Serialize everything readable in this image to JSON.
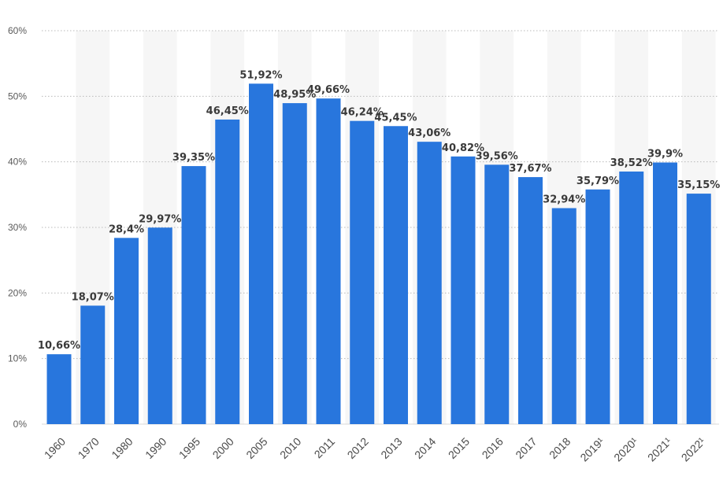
{
  "chart_data": {
    "type": "bar",
    "categories": [
      "1960",
      "1970",
      "1980",
      "1990",
      "1995",
      "2000",
      "2005",
      "2010",
      "2011",
      "2012",
      "2013",
      "2014",
      "2015",
      "2016",
      "2017",
      "2018",
      "2019¹",
      "2020¹",
      "2021¹",
      "2022¹"
    ],
    "values": [
      10.66,
      18.07,
      28.4,
      29.97,
      39.35,
      46.45,
      51.92,
      48.95,
      49.66,
      46.24,
      45.45,
      43.06,
      40.82,
      39.56,
      37.67,
      32.94,
      35.79,
      38.52,
      39.9,
      35.15
    ],
    "data_labels": [
      "10,66%",
      "18,07%",
      "28,4%",
      "29,97%",
      "39,35%",
      "46,45%",
      "51,92%",
      "48,95%",
      "49,66%",
      "46,24%",
      "45,45%",
      "43,06%",
      "40,82%",
      "39,56%",
      "37,67%",
      "32,94%",
      "35,79%",
      "38,52%",
      "39,9%",
      "35,15%"
    ],
    "y_ticks": [
      "0%",
      "10%",
      "20%",
      "30%",
      "40%",
      "50%",
      "60%"
    ],
    "ylim": [
      0,
      60
    ],
    "grid": true,
    "bar_color": "#2876dd",
    "stripe_color": "#f6f6f6",
    "grid_color": "#b9b9b9"
  }
}
